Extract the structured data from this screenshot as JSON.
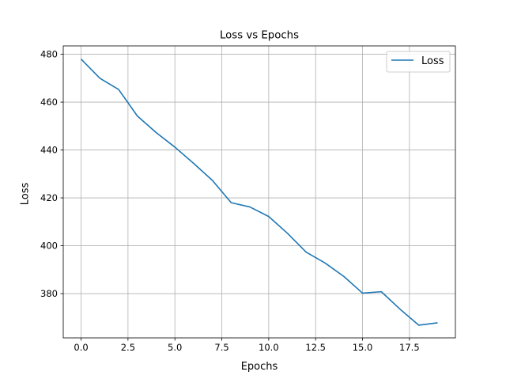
{
  "chart_data": {
    "type": "line",
    "title": "Loss vs Epochs",
    "xlabel": "Epochs",
    "ylabel": "Loss",
    "xlim": [
      -0.95,
      19.95
    ],
    "ylim": [
      361.5,
      483.5
    ],
    "xticks": [
      0.0,
      2.5,
      5.0,
      7.5,
      10.0,
      12.5,
      15.0,
      17.5
    ],
    "xtick_labels": [
      "0.0",
      "2.5",
      "5.0",
      "7.5",
      "10.0",
      "12.5",
      "15.0",
      "17.5"
    ],
    "yticks": [
      380,
      400,
      420,
      440,
      460,
      480
    ],
    "ytick_labels": [
      "380",
      "400",
      "420",
      "440",
      "460",
      "480"
    ],
    "grid": true,
    "legend_position": "top-right",
    "series": [
      {
        "name": "Loss",
        "color": "#1f77b4",
        "x": [
          0,
          1,
          2,
          3,
          4,
          5,
          6,
          7,
          8,
          9,
          10,
          11,
          12,
          13,
          14,
          15,
          16,
          17,
          18,
          19
        ],
        "y": [
          478,
          470,
          465.3,
          454.2,
          447.3,
          441.2,
          434.4,
          427.3,
          418.0,
          416.2,
          412.2,
          405.2,
          397.3,
          392.8,
          387.2,
          380.2,
          380.8,
          373.5,
          366.8,
          367.8
        ]
      }
    ]
  }
}
